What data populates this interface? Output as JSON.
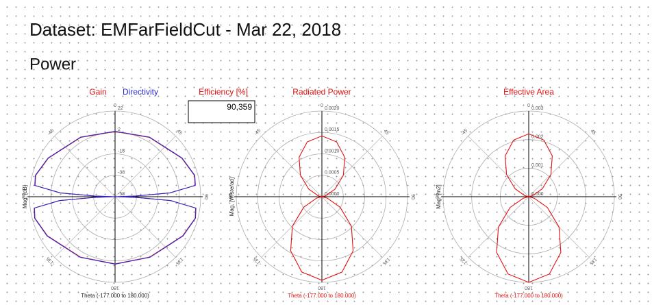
{
  "header": {
    "title": "Dataset: EMFarFieldCut - Mar 22, 2018",
    "subtitle": "Power"
  },
  "efficiency": {
    "label": "Efficiency [%]",
    "value": "90,359"
  },
  "chart_data": [
    {
      "type": "polar",
      "ylabel": "Mag. [dB]",
      "xlabel": "Theta (-177.000 to 180.000)",
      "theta": [
        -180,
        -150,
        -120,
        -105,
        -98,
        -94,
        -92,
        -90,
        -88,
        -86,
        -82,
        -75,
        -60,
        -30,
        0,
        30,
        60,
        75,
        82,
        86,
        88,
        90,
        92,
        94,
        98,
        105,
        120,
        150,
        180
      ],
      "series": [
        {
          "name": "Gain",
          "color": "#e01010",
          "values": [
            4.7,
            7,
            15,
            19.5,
            18,
            -6,
            -38,
            -58,
            -38.8,
            -6.8,
            17.5,
            18.8,
            14,
            6,
            2.8,
            6,
            14,
            18.8,
            17.5,
            -6.8,
            -38.8,
            -58,
            -38,
            -6,
            18,
            19.5,
            15,
            7,
            4.7
          ]
        },
        {
          "name": "Directivity",
          "color": "#2a2ad0",
          "values": [
            5,
            7.3,
            15.3,
            19.8,
            18.3,
            -5.7,
            -37.7,
            -58,
            -38.5,
            -6.5,
            17.8,
            19.1,
            14.3,
            6.3,
            3.1,
            6.3,
            14.3,
            19.1,
            17.8,
            -6.5,
            -38.5,
            -58,
            -37.7,
            -5.7,
            18.3,
            19.8,
            15.3,
            7.3,
            5
          ]
        }
      ],
      "rlim": [
        -58,
        22
      ],
      "rticks": [
        -58,
        -38,
        -18,
        2,
        22
      ],
      "thetaticks": [
        0,
        45,
        90,
        135,
        180,
        -135,
        -90,
        -45
      ]
    },
    {
      "type": "polar",
      "title": "Radiated Power",
      "ylabel": "Mag. [W/sterad]",
      "xlabel": "Theta (-177.000 to 180.000)",
      "theta": [
        -180,
        -165,
        -150,
        -135,
        -120,
        -105,
        -90,
        -75,
        -60,
        -45,
        -30,
        -15,
        0,
        15,
        30,
        45,
        60,
        75,
        90,
        105,
        120,
        135,
        150,
        165,
        180
      ],
      "series": [
        {
          "color": "#e01010",
          "values": [
            0.00195,
            0.00182,
            0.00146,
            0.000975,
            0.00049,
            0.00013,
            0,
            9.5e-05,
            0.000355,
            0.00071,
            0.001065,
            0.001325,
            0.00142,
            0.001325,
            0.001065,
            0.00071,
            0.000355,
            9.5e-05,
            0,
            0.00013,
            0.00049,
            0.000975,
            0.00146,
            0.00182,
            0.00195
          ]
        }
      ],
      "rlim": [
        0,
        0.002
      ],
      "rticks": [
        {
          "value": 0,
          "label": "0.0000"
        },
        {
          "value": 0.0005,
          "label": "0.0005"
        },
        {
          "value": 0.001,
          "label": "0.0010"
        },
        {
          "value": 0.0015,
          "label": "0.0015"
        },
        {
          "value": 0.002,
          "label": "0.0020"
        }
      ],
      "thetaticks": [
        0,
        45,
        90,
        135,
        180,
        -135,
        -90,
        -45
      ]
    },
    {
      "type": "polar",
      "title": "Effective Area",
      "ylabel": "Mag. [m2]",
      "xlabel": "Theta (-177.000 to 180.000)",
      "theta": [
        -180,
        -165,
        -150,
        -135,
        -120,
        -105,
        -90,
        -75,
        -60,
        -45,
        -30,
        -15,
        0,
        15,
        30,
        45,
        60,
        75,
        90,
        105,
        120,
        135,
        150,
        165,
        180
      ],
      "series": [
        {
          "color": "#e01010",
          "values": [
            0.003,
            0.0028,
            0.00225,
            0.0015,
            0.00075,
            0.0002,
            0,
            0.000147,
            0.00055,
            0.0011,
            0.00165,
            0.002053,
            0.0022,
            0.002053,
            0.00165,
            0.0011,
            0.00055,
            0.000147,
            0,
            0.0002,
            0.00075,
            0.0015,
            0.00225,
            0.0028,
            0.003
          ]
        }
      ],
      "rlim": [
        0,
        0.003
      ],
      "rticks": [
        {
          "value": 0,
          "label": "0.000"
        },
        {
          "value": 0.001,
          "label": "0.001"
        },
        {
          "value": 0.002,
          "label": "0.002"
        },
        {
          "value": 0.003,
          "label": "0.003"
        }
      ],
      "thetaticks": [
        0,
        45,
        90,
        135,
        180,
        -135,
        -90,
        -45
      ]
    }
  ]
}
